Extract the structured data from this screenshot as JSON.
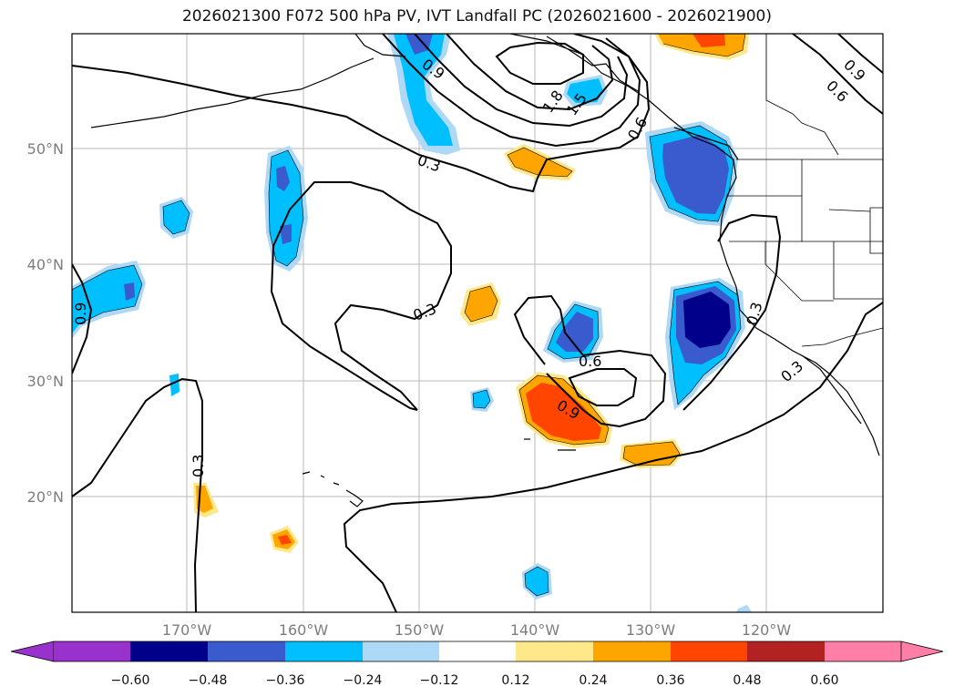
{
  "title": "2026021300 F072 500 hPa PV, IVT Landfall PC (2026021600 - 2026021900)",
  "map": {
    "lat_labels": [
      "50°N",
      "40°N",
      "30°N",
      "20°N"
    ],
    "lon_labels": [
      "170°W",
      "160°W",
      "150°W",
      "140°W",
      "130°W",
      "120°W"
    ],
    "contour_labels": [
      "0.9",
      "1.8",
      "1.5",
      "0.6",
      "0.9",
      "0.6",
      "0.3",
      "0.3",
      "0.6",
      "0.9",
      "0.3",
      "0.3",
      "0.3",
      "0.9"
    ],
    "colors": {
      "neg_060": "#9932cc",
      "neg_048": "#00008b",
      "neg_036": "#3a5bcd",
      "neg_024": "#00bfff",
      "neg_012": "#add8f6",
      "neutral": "#ffffff",
      "pos_012": "#ffe88a",
      "pos_024": "#ffa500",
      "pos_036": "#ff4500",
      "pos_048": "#b22222",
      "pos_060": "#ff7fa8"
    }
  },
  "colorbar": {
    "ticks": [
      "−0.60",
      "−0.48",
      "−0.36",
      "−0.24",
      "−0.12",
      "0.12",
      "0.24",
      "0.36",
      "0.48",
      "0.60"
    ]
  }
}
